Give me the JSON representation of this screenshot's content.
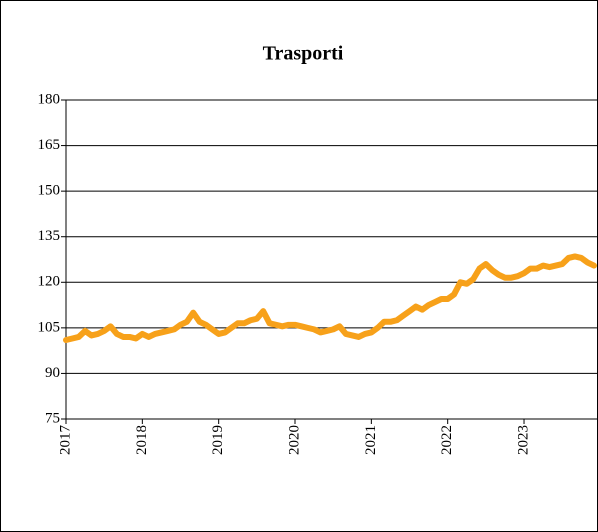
{
  "chart_data": {
    "type": "line",
    "title": "Trasporti",
    "categories": [
      "2017",
      null,
      null,
      null,
      null,
      null,
      null,
      null,
      null,
      null,
      null,
      null,
      "2018",
      null,
      null,
      null,
      null,
      null,
      null,
      null,
      null,
      null,
      null,
      null,
      "2019",
      null,
      null,
      null,
      null,
      null,
      null,
      null,
      null,
      null,
      null,
      null,
      "2020",
      null,
      null,
      null,
      null,
      null,
      null,
      null,
      null,
      null,
      null,
      null,
      "2021",
      null,
      null,
      null,
      null,
      null,
      null,
      null,
      null,
      null,
      null,
      null,
      "2022",
      null,
      null,
      null,
      null,
      null,
      null,
      null,
      null,
      null,
      null,
      null,
      "2023",
      null,
      null,
      null,
      null,
      null,
      null,
      null,
      null,
      null,
      null,
      null
    ],
    "series": [
      {
        "name": "Trasporti",
        "color": "#f7a11a",
        "values": [
          101,
          101.5,
          102,
          104,
          102.5,
          103,
          104,
          105.5,
          103,
          102,
          102,
          101.5,
          103,
          102,
          103,
          103.5,
          104,
          104.5,
          106,
          107,
          110,
          107,
          106,
          104.5,
          103,
          103.5,
          105,
          106.5,
          106.5,
          107.5,
          108,
          110.5,
          106.5,
          106,
          105.5,
          106,
          106,
          105.5,
          105,
          104.5,
          103.5,
          104,
          104.5,
          105.5,
          103,
          102.5,
          102,
          103,
          103.5,
          105,
          107,
          107,
          107.5,
          109,
          110.5,
          112,
          111,
          112.5,
          113.5,
          114.5,
          114.5,
          116,
          120,
          119.5,
          121,
          124.5,
          126,
          124,
          122.5,
          121.5,
          121.5,
          122,
          123,
          124.5,
          124.5,
          125.5,
          125,
          125.5,
          126,
          128,
          128.5,
          128,
          126.5,
          125.5
        ]
      }
    ],
    "ylim": [
      75,
      180
    ],
    "yticks": [
      75,
      90,
      105,
      120,
      135,
      150,
      165,
      180
    ],
    "grid": true
  }
}
